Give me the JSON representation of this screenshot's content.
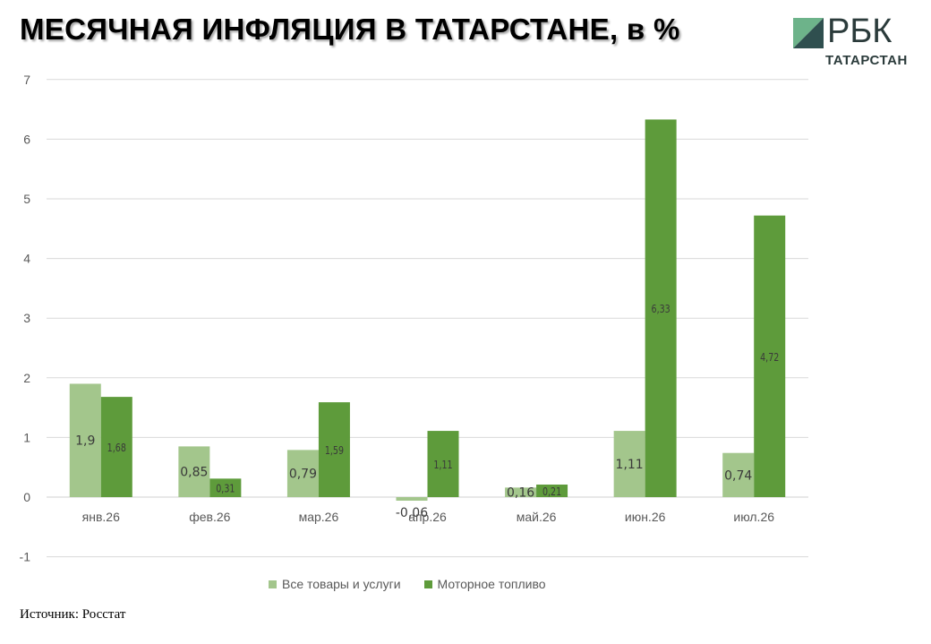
{
  "chart_data": {
    "type": "bar",
    "title": "МЕСЯЧНАЯ ИНФЛЯЦИЯ В ТАТАРСТАНЕ, в %",
    "categories": [
      "янв.26",
      "фев.26",
      "мар.26",
      "апр.26",
      "май.26",
      "июн.26",
      "июл.26"
    ],
    "series": [
      {
        "name": "Все товары и услуги",
        "color": "#a3c68c",
        "values": [
          1.9,
          0.85,
          0.79,
          -0.06,
          0.16,
          1.11,
          0.74
        ],
        "labels": [
          "1,9",
          "0,85",
          "0,79",
          "-0,06",
          "0,16",
          "1,11",
          "0,74"
        ]
      },
      {
        "name": "Моторное топливо",
        "color": "#5e9b3b",
        "values": [
          1.68,
          0.31,
          1.59,
          1.11,
          0.21,
          6.33,
          4.72
        ],
        "labels": [
          "1,68",
          "0,31",
          "1,59",
          "1,11",
          "0,21",
          "6,33",
          "4,72"
        ]
      }
    ],
    "y_ticks": [
      -1,
      0,
      1,
      2,
      3,
      4,
      5,
      6,
      7
    ],
    "ylim": [
      -1,
      7
    ],
    "grid": true,
    "legend": "bottom"
  },
  "logo": {
    "text": "РБК",
    "subtitle": "ТАТАРСТАН",
    "colors": [
      "#2f4f4f",
      "#6db38a"
    ]
  },
  "source": "Источник: Росстат"
}
